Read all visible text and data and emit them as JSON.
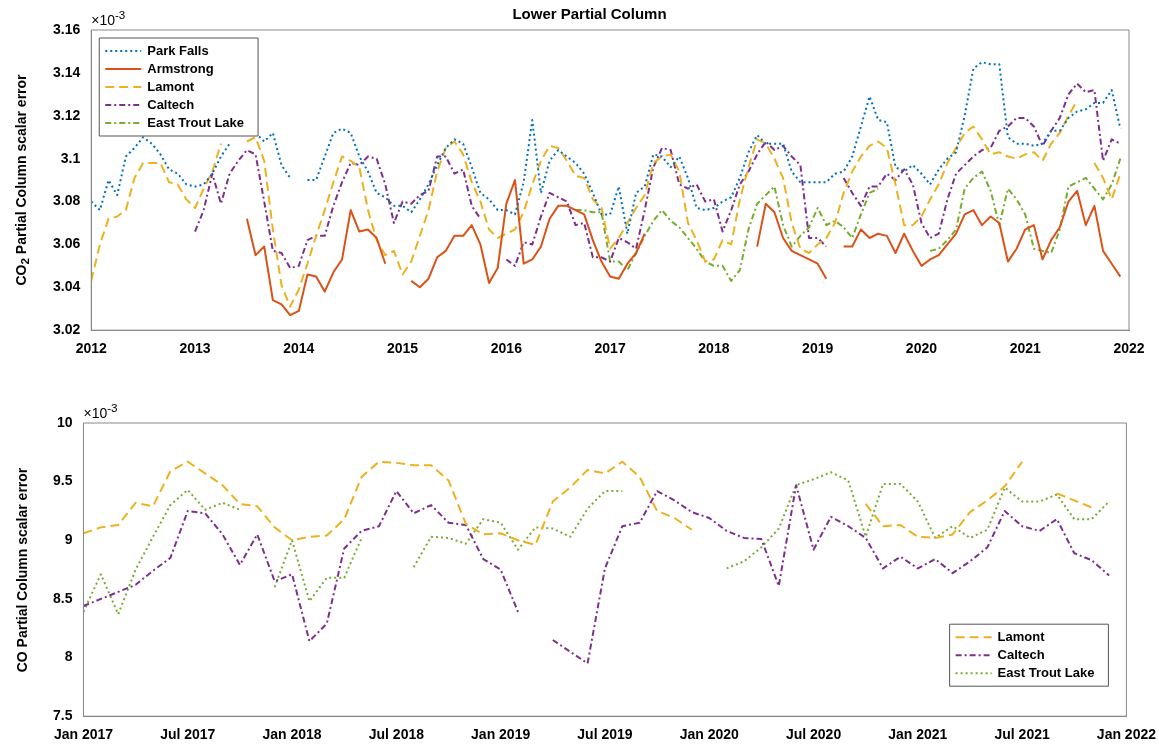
{
  "chart_data": [
    {
      "type": "line",
      "title": "Lower Partial Column",
      "ylabel": "CO$_{2}$ Partial Column scalar error",
      "annotations": [
        "×10$^{-3}$"
      ],
      "x": [
        "2012-01",
        "2012-02",
        "2012-03",
        "2012-04",
        "2012-05",
        "2012-06",
        "2012-07",
        "2012-08",
        "2012-09",
        "2012-10",
        "2012-11",
        "2012-12",
        "2013-01",
        "2013-02",
        "2013-03",
        "2013-04",
        "2013-05",
        "2013-06",
        "2013-07",
        "2013-08",
        "2013-09",
        "2013-10",
        "2013-11",
        "2013-12",
        "2014-01",
        "2014-02",
        "2014-03",
        "2014-04",
        "2014-05",
        "2014-06",
        "2014-07",
        "2014-08",
        "2014-09",
        "2014-10",
        "2014-11",
        "2014-12",
        "2015-01",
        "2015-02",
        "2015-03",
        "2015-04",
        "2015-05",
        "2015-06",
        "2015-07",
        "2015-08",
        "2015-09",
        "2015-10",
        "2015-11",
        "2015-12",
        "2016-01",
        "2016-02",
        "2016-03",
        "2016-04",
        "2016-05",
        "2016-06",
        "2016-07",
        "2016-08",
        "2016-09",
        "2016-10",
        "2016-11",
        "2016-12",
        "2017-01",
        "2017-02",
        "2017-03",
        "2017-04",
        "2017-05",
        "2017-06",
        "2017-07",
        "2017-08",
        "2017-09",
        "2017-10",
        "2017-11",
        "2017-12",
        "2018-01",
        "2018-02",
        "2018-03",
        "2018-04",
        "2018-05",
        "2018-06",
        "2018-07",
        "2018-08",
        "2018-09",
        "2018-10",
        "2018-11",
        "2018-12",
        "2019-01",
        "2019-02",
        "2019-03",
        "2019-04",
        "2019-05",
        "2019-06",
        "2019-07",
        "2019-08",
        "2019-09",
        "2019-10",
        "2019-11",
        "2019-12",
        "2020-01",
        "2020-02",
        "2020-03",
        "2020-04",
        "2020-05",
        "2020-06",
        "2020-07",
        "2020-08",
        "2020-09",
        "2020-10",
        "2020-11",
        "2020-12",
        "2021-01",
        "2021-02",
        "2021-03",
        "2021-04",
        "2021-05",
        "2021-06",
        "2021-07",
        "2021-08",
        "2021-09",
        "2021-10",
        "2021-11",
        "2021-12"
      ],
      "xlim": [
        "2012",
        "2022"
      ],
      "xticks": [
        "2012",
        "2013",
        "2014",
        "2015",
        "2016",
        "2017",
        "2018",
        "2019",
        "2020",
        "2021",
        "2022"
      ],
      "ylim": [
        3.02,
        3.16
      ],
      "yticks": [
        3.02,
        3.04,
        3.06,
        3.08,
        3.1,
        3.12,
        3.14,
        3.16
      ],
      "legend": "top left",
      "series": [
        {
          "name": "Park Falls",
          "color": "#0072bd",
          "line_style": "dotted",
          "values": [
            3.08,
            3.076,
            3.09,
            3.083,
            3.101,
            3.105,
            3.11,
            3.107,
            3.102,
            3.095,
            3.093,
            3.088,
            3.087,
            3.088,
            3.093,
            3.101,
            3.107,
            null,
            null,
            3.112,
            3.108,
            3.112,
            3.097,
            3.091,
            null,
            3.09,
            3.09,
            3.101,
            3.112,
            3.114,
            3.112,
            3.101,
            3.094,
            3.084,
            3.082,
            3.078,
            3.078,
            3.075,
            3.081,
            3.088,
            3.097,
            3.105,
            3.109,
            3.107,
            3.096,
            3.084,
            3.081,
            3.076,
            3.076,
            3.074,
            3.089,
            3.118,
            3.084,
            3.099,
            3.104,
            3.101,
            3.098,
            3.093,
            3.084,
            3.074,
            3.074,
            3.087,
            3.065,
            3.084,
            3.087,
            3.102,
            3.101,
            3.096,
            3.101,
            3.091,
            3.077,
            3.076,
            3.077,
            3.08,
            3.082,
            3.091,
            3.103,
            3.111,
            3.107,
            3.107,
            3.107,
            3.094,
            3.089,
            3.089,
            3.089,
            3.089,
            3.093,
            3.094,
            3.101,
            3.115,
            3.129,
            3.118,
            3.117,
            3.096,
            3.094,
            3.097,
            3.093,
            3.088,
            3.095,
            3.1,
            3.103,
            3.12,
            3.142,
            3.145,
            3.144,
            3.144,
            3.11,
            3.107,
            3.107,
            3.106,
            3.107,
            3.113,
            3.113,
            3.119,
            3.122,
            3.123,
            3.126,
            3.126,
            3.132,
            3.114
          ]
        },
        {
          "name": "Armstrong",
          "color": "#d95319",
          "line_style": "solid",
          "values": [
            null,
            null,
            null,
            null,
            null,
            null,
            null,
            null,
            null,
            null,
            null,
            null,
            null,
            null,
            null,
            null,
            null,
            null,
            3.072,
            3.055,
            3.059,
            3.034,
            3.032,
            3.027,
            3.029,
            3.046,
            3.045,
            3.038,
            3.047,
            3.053,
            3.076,
            3.066,
            3.067,
            3.063,
            3.051,
            null,
            null,
            3.043,
            3.04,
            3.044,
            3.054,
            3.057,
            3.064,
            3.064,
            3.069,
            3.06,
            3.042,
            3.049,
            3.079,
            3.09,
            3.051,
            3.053,
            3.059,
            3.072,
            3.078,
            3.078,
            3.076,
            3.074,
            3.062,
            3.052,
            3.045,
            3.044,
            3.051,
            3.056,
            3.065,
            null,
            null,
            null,
            null,
            null,
            null,
            null,
            null,
            null,
            null,
            null,
            null,
            3.059,
            3.079,
            3.075,
            3.063,
            3.057,
            3.055,
            3.053,
            3.051,
            3.044,
            null,
            3.059,
            3.059,
            3.067,
            3.063,
            3.065,
            3.064,
            3.056,
            3.065,
            3.057,
            3.05,
            3.053,
            3.055,
            3.06,
            3.065,
            3.074,
            3.076,
            3.069,
            3.073,
            3.07,
            3.052,
            3.058,
            3.067,
            3.069,
            3.053,
            3.062,
            3.068,
            3.08,
            3.085,
            3.069,
            3.078,
            3.057,
            3.051,
            3.045
          ]
        },
        {
          "name": "Lamont",
          "color": "#edb120",
          "line_style": "dashed",
          "values": [
            3.043,
            3.06,
            3.072,
            3.073,
            3.076,
            3.091,
            3.098,
            3.098,
            3.098,
            3.089,
            3.088,
            3.081,
            3.077,
            3.086,
            3.094,
            3.107,
            null,
            null,
            3.108,
            3.11,
            3.099,
            3.067,
            3.041,
            3.031,
            3.039,
            3.051,
            3.064,
            3.076,
            3.089,
            3.101,
            3.099,
            3.096,
            3.076,
            3.062,
            3.055,
            3.057,
            3.046,
            3.052,
            3.064,
            3.076,
            3.094,
            3.105,
            3.108,
            3.102,
            3.089,
            3.08,
            3.067,
            3.063,
            3.065,
            3.067,
            3.075,
            3.088,
            3.099,
            3.106,
            3.105,
            3.099,
            3.092,
            3.091,
            3.081,
            3.077,
            3.058,
            3.063,
            3.07,
            3.077,
            3.083,
            3.098,
            3.101,
            3.102,
            3.094,
            3.07,
            3.062,
            3.052,
            3.053,
            3.062,
            3.06,
            3.081,
            3.096,
            3.109,
            3.107,
            3.1,
            3.091,
            3.07,
            3.058,
            3.056,
            3.06,
            3.063,
            3.07,
            3.084,
            3.094,
            3.101,
            3.106,
            3.108,
            3.105,
            3.088,
            3.069,
            3.069,
            3.073,
            3.081,
            3.088,
            3.098,
            3.105,
            3.112,
            3.115,
            3.109,
            3.102,
            3.103,
            3.101,
            3.1,
            3.102,
            3.103,
            3.099,
            3.107,
            3.112,
            3.12,
            3.127,
            null,
            3.098,
            3.091,
            3.081,
            3.093
          ]
        },
        {
          "name": "Caltech",
          "color": "#7e2f8e",
          "line_style": "dashdot",
          "values": [
            null,
            null,
            null,
            null,
            null,
            null,
            null,
            null,
            null,
            null,
            null,
            null,
            3.066,
            3.076,
            3.093,
            3.079,
            3.093,
            3.099,
            3.104,
            3.102,
            3.08,
            3.057,
            3.056,
            3.049,
            3.05,
            3.062,
            3.064,
            3.064,
            3.078,
            3.089,
            3.098,
            3.097,
            3.101,
            3.1,
            3.088,
            3.07,
            3.08,
            3.079,
            3.083,
            3.085,
            3.101,
            3.101,
            3.093,
            3.095,
            3.078,
            3.072,
            null,
            null,
            3.053,
            3.05,
            3.061,
            3.06,
            3.073,
            3.084,
            3.082,
            3.08,
            3.069,
            3.07,
            3.054,
            3.054,
            3.052,
            3.063,
            3.061,
            3.058,
            3.076,
            3.096,
            3.105,
            3.104,
            3.088,
            3.086,
            3.088,
            3.08,
            3.081,
            3.066,
            3.076,
            3.088,
            3.094,
            3.102,
            3.108,
            3.104,
            3.106,
            3.101,
            3.097,
            3.063,
            3.063,
            3.059,
            null,
            3.091,
            3.084,
            3.078,
            3.087,
            3.087,
            3.093,
            3.09,
            3.095,
            3.088,
            3.07,
            3.063,
            3.065,
            3.081,
            3.093,
            3.097,
            3.101,
            3.104,
            3.105,
            3.113,
            3.115,
            3.119,
            3.119,
            3.115,
            3.106,
            3.113,
            3.119,
            3.13,
            3.135,
            3.131,
            3.132,
            3.099,
            3.109,
            3.107
          ]
        },
        {
          "name": "East Trout Lake",
          "color": "#77ac30",
          "line_style": "dashdot",
          "values": [
            null,
            null,
            null,
            null,
            null,
            null,
            null,
            null,
            null,
            null,
            null,
            null,
            null,
            null,
            null,
            null,
            null,
            null,
            null,
            null,
            null,
            null,
            null,
            null,
            null,
            null,
            null,
            null,
            null,
            null,
            null,
            null,
            null,
            null,
            null,
            null,
            null,
            null,
            null,
            null,
            null,
            null,
            null,
            null,
            null,
            null,
            null,
            null,
            null,
            null,
            null,
            null,
            null,
            null,
            null,
            null,
            3.076,
            3.076,
            3.075,
            3.075,
            3.052,
            3.052,
            3.048,
            3.056,
            3.064,
            3.071,
            3.076,
            3.071,
            3.068,
            3.063,
            3.058,
            3.052,
            3.05,
            3.05,
            3.043,
            3.048,
            3.067,
            3.079,
            3.083,
            3.087,
            3.069,
            3.059,
            3.064,
            3.068,
            3.077,
            3.069,
            3.071,
            3.068,
            3.063,
            3.074,
            3.084,
            3.086,
            null,
            null,
            null,
            null,
            null,
            3.057,
            3.058,
            3.062,
            3.067,
            3.086,
            3.091,
            3.094,
            3.085,
            3.069,
            3.086,
            3.081,
            3.074,
            3.058,
            3.057,
            3.056,
            3.067,
            3.087,
            3.089,
            3.091,
            3.086,
            3.081,
            3.088,
            3.1
          ]
        }
      ]
    },
    {
      "type": "line",
      "ylabel": "CO Partial Column scalar error",
      "annotations": [
        "×10$^{-3}$"
      ],
      "x": [
        "2017-01",
        "2017-02",
        "2017-03",
        "2017-04",
        "2017-05",
        "2017-06",
        "2017-07",
        "2017-08",
        "2017-09",
        "2017-10",
        "2017-11",
        "2017-12",
        "2018-01",
        "2018-02",
        "2018-03",
        "2018-04",
        "2018-05",
        "2018-06",
        "2018-07",
        "2018-08",
        "2018-09",
        "2018-10",
        "2018-11",
        "2018-12",
        "2019-01",
        "2019-02",
        "2019-03",
        "2019-04",
        "2019-05",
        "2019-06",
        "2019-07",
        "2019-08",
        "2019-09",
        "2019-10",
        "2019-11",
        "2019-12",
        "2020-01",
        "2020-02",
        "2020-03",
        "2020-04",
        "2020-05",
        "2020-06",
        "2020-07",
        "2020-08",
        "2020-09",
        "2020-10",
        "2020-11",
        "2020-12",
        "2021-01",
        "2021-02",
        "2021-03",
        "2021-04",
        "2021-05",
        "2021-06",
        "2021-07",
        "2021-08",
        "2021-09",
        "2021-10",
        "2021-11",
        "2021-12"
      ],
      "xlim": [
        "2017-01",
        "2022-01"
      ],
      "xticks": [
        {
          "value": "2017-01",
          "label": "Jan 2017"
        },
        {
          "value": "2017-07",
          "label": "Jul 2017"
        },
        {
          "value": "2018-01",
          "label": "Jan 2018"
        },
        {
          "value": "2018-07",
          "label": "Jul 2018"
        },
        {
          "value": "2019-01",
          "label": "Jan 2019"
        },
        {
          "value": "2019-07",
          "label": "Jul 2019"
        },
        {
          "value": "2020-01",
          "label": "Jan 2020"
        },
        {
          "value": "2020-07",
          "label": "Jul 2020"
        },
        {
          "value": "2021-01",
          "label": "Jan 2021"
        },
        {
          "value": "2021-07",
          "label": "Jul 2021"
        },
        {
          "value": "2022-01",
          "label": "Jan 2022"
        }
      ],
      "ylim": [
        7.5,
        10
      ],
      "yticks": [
        7.5,
        8,
        8.5,
        9,
        9.5,
        10
      ],
      "legend": "bottom right",
      "series": [
        {
          "name": "Lamont",
          "color": "#edb120",
          "line_style": "dashed",
          "values": [
            9.06,
            9.11,
            9.13,
            9.32,
            9.29,
            9.59,
            9.67,
            9.57,
            9.47,
            9.31,
            9.29,
            9.11,
            9.0,
            9.03,
            9.04,
            9.18,
            9.54,
            9.67,
            9.66,
            9.64,
            9.64,
            9.51,
            9.14,
            9.05,
            9.06,
            9.0,
            8.96,
            9.33,
            9.45,
            9.6,
            9.57,
            9.67,
            9.54,
            9.25,
            9.19,
            9.09,
            null,
            null,
            null,
            null,
            null,
            null,
            null,
            null,
            null,
            9.31,
            9.12,
            9.13,
            9.03,
            9.02,
            9.05,
            9.24,
            9.34,
            9.46,
            9.67,
            null,
            9.4,
            9.34,
            9.28,
            null
          ]
        },
        {
          "name": "Caltech",
          "color": "#7e2f8e",
          "line_style": "dashdot",
          "values": [
            8.44,
            8.5,
            8.56,
            8.62,
            8.74,
            8.85,
            9.25,
            9.23,
            9.05,
            8.79,
            9.05,
            8.65,
            8.71,
            8.14,
            8.29,
            8.93,
            9.08,
            9.12,
            9.42,
            9.23,
            9.3,
            9.15,
            9.13,
            8.84,
            8.75,
            8.39,
            null,
            8.15,
            8.05,
            7.95,
            8.76,
            9.12,
            9.15,
            9.42,
            9.34,
            9.24,
            9.19,
            9.08,
            9.02,
            9.01,
            8.61,
            9.47,
            8.92,
            9.2,
            9.12,
            9.02,
            8.76,
            8.86,
            8.76,
            8.84,
            8.72,
            8.82,
            8.94,
            9.25,
            9.12,
            9.08,
            9.18,
            8.89,
            8.83,
            8.7
          ]
        },
        {
          "name": "East Trout Lake",
          "color": "#77ac30",
          "line_style": "dotted",
          "values": [
            8.39,
            8.71,
            8.37,
            8.75,
            9.03,
            9.3,
            9.43,
            9.26,
            9.32,
            9.26,
            null,
            8.6,
            9.0,
            8.48,
            8.68,
            8.68,
            9.02,
            null,
            null,
            8.77,
            9.03,
            9.02,
            8.97,
            9.18,
            9.15,
            8.92,
            9.11,
            9.1,
            9.03,
            9.27,
            9.42,
            9.42,
            null,
            null,
            null,
            null,
            null,
            8.76,
            8.82,
            8.94,
            9.1,
            9.47,
            9.52,
            9.58,
            9.51,
            9.03,
            9.48,
            9.48,
            9.33,
            9.02,
            9.12,
            9.02,
            9.09,
            9.45,
            9.33,
            9.33,
            9.39,
            9.18,
            9.18,
            9.33
          ]
        }
      ]
    }
  ]
}
